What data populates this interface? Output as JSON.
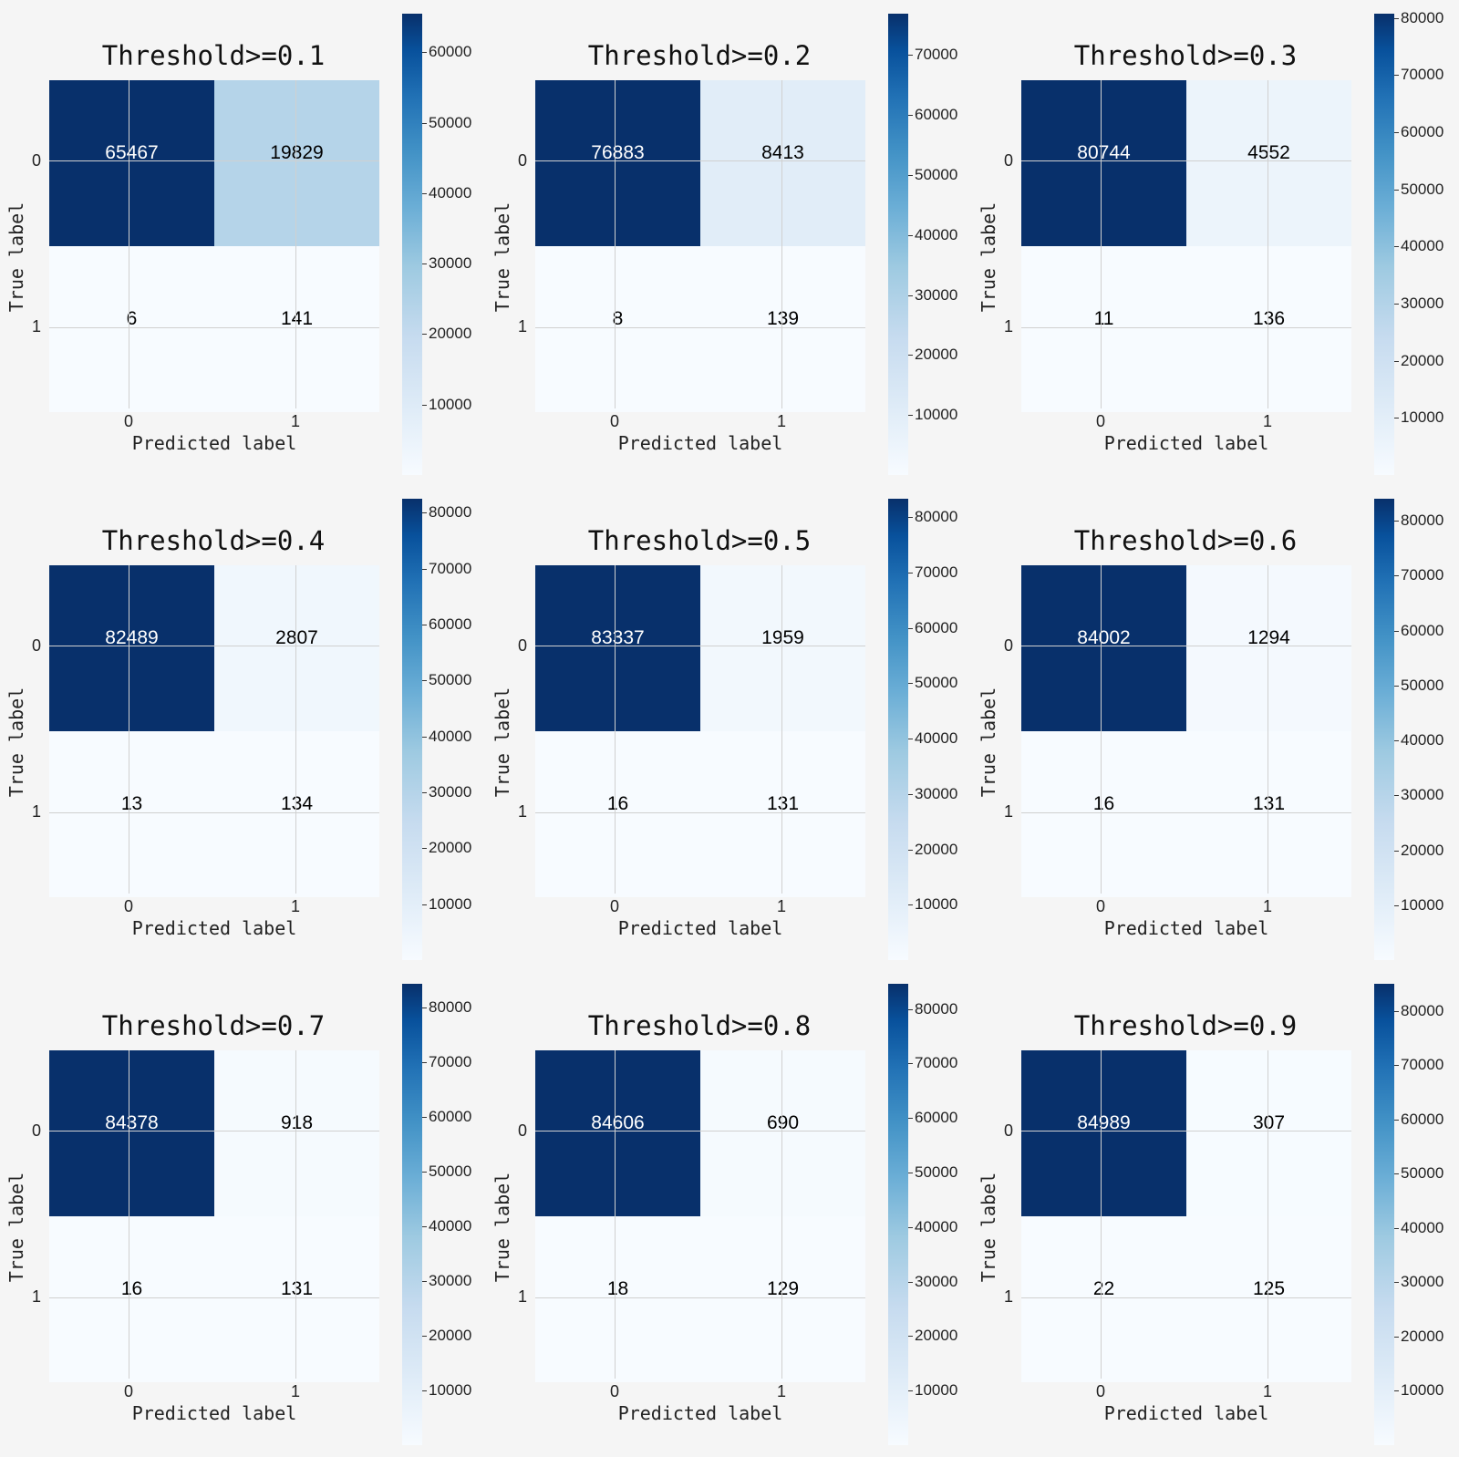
{
  "chart_data": [
    {
      "type": "heatmap",
      "title": "Threshold>=0.1",
      "matrix": [
        [
          65467,
          19829
        ],
        [
          6,
          141
        ]
      ],
      "xlabel": "Predicted label",
      "ylabel": "True label",
      "x_ticks": [
        "0",
        "1"
      ],
      "y_ticks": [
        "0",
        "1"
      ],
      "colorbar": {
        "colormap": "Blues",
        "min": 0,
        "max": 65467,
        "ticks": [
          "10000",
          "20000",
          "30000",
          "40000",
          "50000",
          "60000"
        ]
      }
    },
    {
      "type": "heatmap",
      "title": "Threshold>=0.2",
      "matrix": [
        [
          76883,
          8413
        ],
        [
          8,
          139
        ]
      ],
      "xlabel": "Predicted label",
      "ylabel": "True label",
      "x_ticks": [
        "0",
        "1"
      ],
      "y_ticks": [
        "0",
        "1"
      ],
      "colorbar": {
        "colormap": "Blues",
        "min": 0,
        "max": 76883,
        "ticks": [
          "10000",
          "20000",
          "30000",
          "40000",
          "50000",
          "60000",
          "70000"
        ]
      }
    },
    {
      "type": "heatmap",
      "title": "Threshold>=0.3",
      "matrix": [
        [
          80744,
          4552
        ],
        [
          11,
          136
        ]
      ],
      "xlabel": "Predicted label",
      "ylabel": "True label",
      "x_ticks": [
        "0",
        "1"
      ],
      "y_ticks": [
        "0",
        "1"
      ],
      "colorbar": {
        "colormap": "Blues",
        "min": 0,
        "max": 80744,
        "ticks": [
          "10000",
          "20000",
          "30000",
          "40000",
          "50000",
          "60000",
          "70000",
          "80000"
        ]
      }
    },
    {
      "type": "heatmap",
      "title": "Threshold>=0.4",
      "matrix": [
        [
          82489,
          2807
        ],
        [
          13,
          134
        ]
      ],
      "xlabel": "Predicted label",
      "ylabel": "True label",
      "x_ticks": [
        "0",
        "1"
      ],
      "y_ticks": [
        "0",
        "1"
      ],
      "colorbar": {
        "colormap": "Blues",
        "min": 0,
        "max": 82489,
        "ticks": [
          "10000",
          "20000",
          "30000",
          "40000",
          "50000",
          "60000",
          "70000",
          "80000"
        ]
      }
    },
    {
      "type": "heatmap",
      "title": "Threshold>=0.5",
      "matrix": [
        [
          83337,
          1959
        ],
        [
          16,
          131
        ]
      ],
      "xlabel": "Predicted label",
      "ylabel": "True label",
      "x_ticks": [
        "0",
        "1"
      ],
      "y_ticks": [
        "0",
        "1"
      ],
      "colorbar": {
        "colormap": "Blues",
        "min": 0,
        "max": 83337,
        "ticks": [
          "10000",
          "20000",
          "30000",
          "40000",
          "50000",
          "60000",
          "70000",
          "80000"
        ]
      }
    },
    {
      "type": "heatmap",
      "title": "Threshold>=0.6",
      "matrix": [
        [
          84002,
          1294
        ],
        [
          16,
          131
        ]
      ],
      "xlabel": "Predicted label",
      "ylabel": "True label",
      "x_ticks": [
        "0",
        "1"
      ],
      "y_ticks": [
        "0",
        "1"
      ],
      "colorbar": {
        "colormap": "Blues",
        "min": 0,
        "max": 84002,
        "ticks": [
          "10000",
          "20000",
          "30000",
          "40000",
          "50000",
          "60000",
          "70000",
          "80000"
        ]
      }
    },
    {
      "type": "heatmap",
      "title": "Threshold>=0.7",
      "matrix": [
        [
          84378,
          918
        ],
        [
          16,
          131
        ]
      ],
      "xlabel": "Predicted label",
      "ylabel": "True label",
      "x_ticks": [
        "0",
        "1"
      ],
      "y_ticks": [
        "0",
        "1"
      ],
      "colorbar": {
        "colormap": "Blues",
        "min": 0,
        "max": 84378,
        "ticks": [
          "10000",
          "20000",
          "30000",
          "40000",
          "50000",
          "60000",
          "70000",
          "80000"
        ]
      }
    },
    {
      "type": "heatmap",
      "title": "Threshold>=0.8",
      "matrix": [
        [
          84606,
          690
        ],
        [
          18,
          129
        ]
      ],
      "xlabel": "Predicted label",
      "ylabel": "True label",
      "x_ticks": [
        "0",
        "1"
      ],
      "y_ticks": [
        "0",
        "1"
      ],
      "colorbar": {
        "colormap": "Blues",
        "min": 0,
        "max": 84606,
        "ticks": [
          "10000",
          "20000",
          "30000",
          "40000",
          "50000",
          "60000",
          "70000",
          "80000"
        ]
      }
    },
    {
      "type": "heatmap",
      "title": "Threshold>=0.9",
      "matrix": [
        [
          84989,
          307
        ],
        [
          22,
          125
        ]
      ],
      "xlabel": "Predicted label",
      "ylabel": "True label",
      "x_ticks": [
        "0",
        "1"
      ],
      "y_ticks": [
        "0",
        "1"
      ],
      "colorbar": {
        "colormap": "Blues",
        "min": 0,
        "max": 84989,
        "ticks": [
          "10000",
          "20000",
          "30000",
          "40000",
          "50000",
          "60000",
          "70000",
          "80000"
        ]
      }
    }
  ]
}
